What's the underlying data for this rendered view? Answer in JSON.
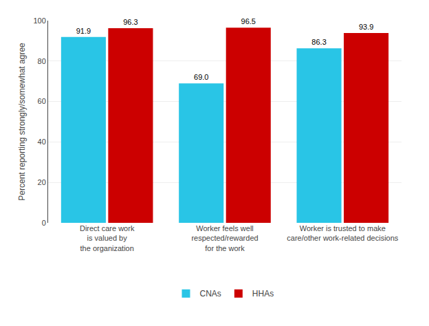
{
  "chart_data": {
    "type": "bar",
    "categories": [
      "Direct care work\nis valued by\nthe organization",
      "Worker feels well\nrespected/rewarded\nfor the work",
      "Worker is trusted to make\ncare/other work-related decisions"
    ],
    "series": [
      {
        "name": "CNAs",
        "color": "#29C5E6",
        "values": [
          91.9,
          69.0,
          86.3
        ],
        "value_labels": [
          "91.9",
          "69.0",
          "86.3"
        ]
      },
      {
        "name": "HHAs",
        "color": "#CC0000",
        "values": [
          96.3,
          96.5,
          93.9
        ]
      }
    ],
    "ylabel": "Percent reporting strongly/somewhat agree",
    "ylim": [
      0,
      100
    ],
    "yticks": [
      0,
      20,
      40,
      60,
      80,
      100
    ],
    "grid": true,
    "legend": "bottom",
    "data_labels": true
  }
}
